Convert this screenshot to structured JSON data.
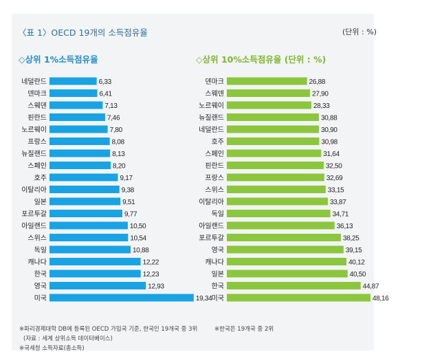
{
  "header": {
    "title": "〈표 1〉OECD 19개의 소득점유율",
    "unit": "(단위 : %)"
  },
  "chart_data": [
    {
      "type": "bar",
      "orientation": "horizontal",
      "title": "◇상위 1%소득점유율",
      "color": "#1aa3e3",
      "xlim": [
        0,
        20
      ],
      "categories": [
        "네덜란드",
        "덴마크",
        "스웨덴",
        "핀란드",
        "노르웨이",
        "프랑스",
        "뉴질랜드",
        "스페인",
        "호주",
        "이탈리아",
        "일본",
        "포르투갈",
        "아일랜드",
        "스위스",
        "독일",
        "캐나다",
        "한국",
        "영국",
        "미국"
      ],
      "values": [
        6.33,
        6.41,
        7.13,
        7.46,
        7.8,
        8.08,
        8.13,
        8.2,
        9.17,
        9.38,
        9.51,
        9.77,
        10.5,
        10.54,
        10.88,
        12.22,
        12.23,
        12.93,
        19.34
      ],
      "labels": [
        "6,33",
        "6,41",
        "7,13",
        "7,46",
        "7,80",
        "8,08",
        "8,13",
        "8,20",
        "9,17",
        "9,38",
        "9,51",
        "9,77",
        "10,50",
        "10,54",
        "10,88",
        "12,22",
        "12,23",
        "12,93",
        "19,34"
      ]
    },
    {
      "type": "bar",
      "orientation": "horizontal",
      "title": "◇상위 10%소득점유율 (단위 : %)",
      "color": "#8cc63f",
      "xlim": [
        0,
        50
      ],
      "categories": [
        "덴마크",
        "스웨덴",
        "노르웨이",
        "뉴질랜드",
        "네덜란드",
        "호주",
        "스페인",
        "핀란드",
        "프랑스",
        "스위스",
        "이탈리아",
        "독일",
        "아일랜드",
        "포르투갈",
        "영국",
        "캐나다",
        "일본",
        "한국",
        "미국"
      ],
      "values": [
        26.88,
        27.9,
        28.33,
        30.88,
        30.9,
        30.98,
        31.64,
        32.5,
        32.69,
        33.15,
        33.87,
        34.71,
        36.13,
        38.25,
        39.15,
        40.12,
        40.5,
        44.87,
        48.16
      ],
      "labels": [
        "26,88",
        "27,90",
        "28,33",
        "30,88",
        "30,90",
        "30,98",
        "31,64",
        "32,50",
        "32,69",
        "33,15",
        "33,87",
        "34,71",
        "36,13",
        "38,25",
        "39,15",
        "40,12",
        "40,50",
        "44,87",
        "48,16"
      ]
    }
  ],
  "footnotes": {
    "left_1": "※파리경제대학 DB에 등록된 OECD 가입국 기준, 한국인 19개국 중 3위",
    "left_2": "(자료 : 세계 상위소득 데이터베이스)",
    "left_3": "※국세청 소득자료(총소득)",
    "right_1": "※한국은 19개국 중 2위"
  }
}
